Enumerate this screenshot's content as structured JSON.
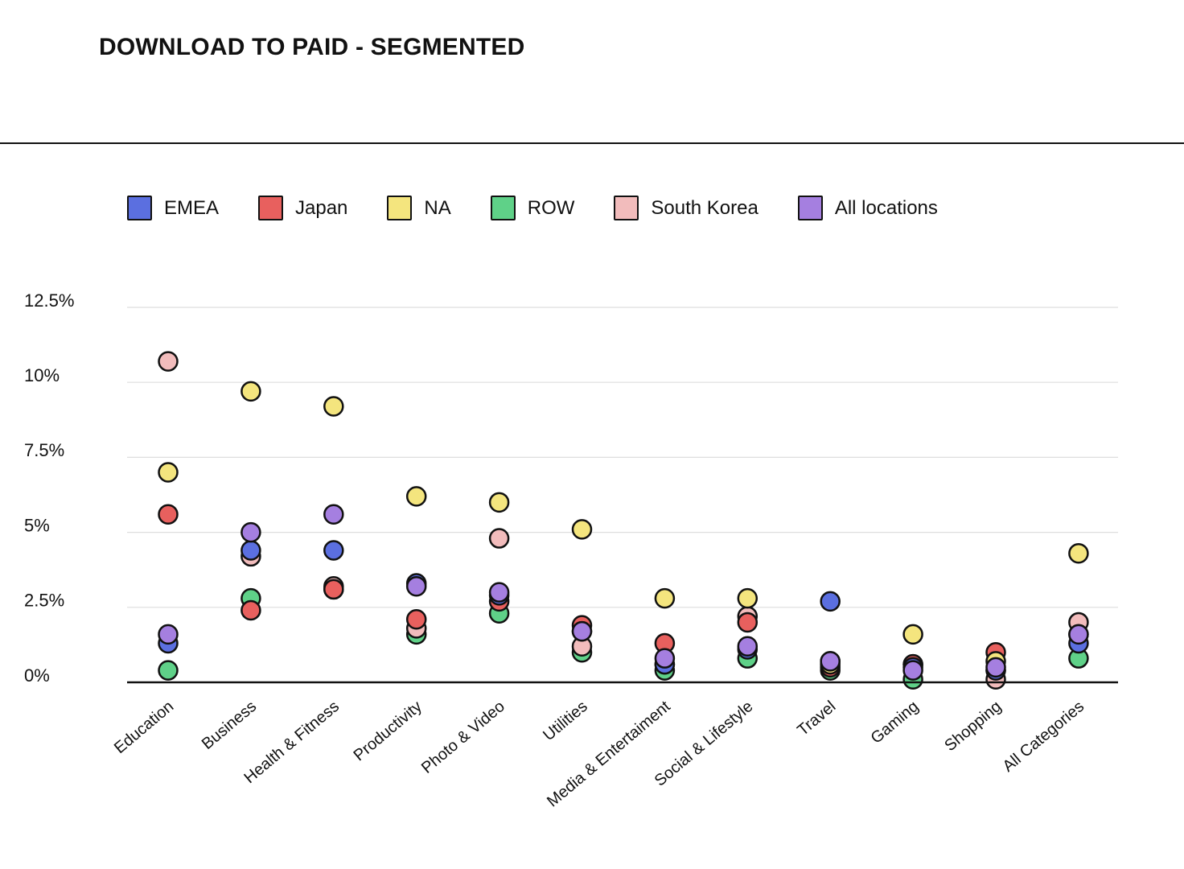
{
  "chart_data": {
    "type": "scatter",
    "title": "DOWNLOAD TO PAID - SEGMENTED",
    "xlabel": "",
    "ylabel": "",
    "ylim": [
      0,
      12.5
    ],
    "yticks": [
      0,
      2.5,
      5,
      7.5,
      10,
      12.5
    ],
    "ytick_labels": [
      "0%",
      "2.5%",
      "5%",
      "7.5%",
      "10%",
      "12.5%"
    ],
    "grid": true,
    "legend_position": "top-left",
    "categories": [
      "Education",
      "Business",
      "Health & Fitness",
      "Productivity",
      "Photo & Video",
      "Utilities",
      "Media & Entertaiment",
      "Social & Lifestyle",
      "Travel",
      "Gaming",
      "Shopping",
      "All Categories"
    ],
    "series": [
      {
        "name": "EMEA",
        "color": "#5b6fe0",
        "values": [
          1.3,
          4.4,
          4.4,
          3.3,
          2.9,
          1.7,
          0.6,
          1.1,
          2.7,
          0.5,
          0.4,
          1.3
        ]
      },
      {
        "name": "Japan",
        "color": "#e8605e",
        "values": [
          5.6,
          2.4,
          3.1,
          2.1,
          2.7,
          1.9,
          1.3,
          2.0,
          0.5,
          0.6,
          1.0,
          1.6
        ]
      },
      {
        "name": "NA",
        "color": "#f4e57e",
        "values": [
          7.0,
          9.7,
          9.2,
          6.2,
          6.0,
          5.1,
          2.8,
          2.8,
          0.6,
          1.6,
          0.7,
          4.3
        ]
      },
      {
        "name": "ROW",
        "color": "#5fd188",
        "values": [
          0.4,
          2.8,
          3.1,
          1.6,
          2.3,
          1.0,
          0.4,
          0.8,
          0.4,
          0.1,
          0.4,
          0.8
        ]
      },
      {
        "name": "South Korea",
        "color": "#f2bcbc",
        "values": [
          10.7,
          4.2,
          3.2,
          1.8,
          4.8,
          1.2,
          0.6,
          2.2,
          0.7,
          0.6,
          0.1,
          2.0
        ]
      },
      {
        "name": "All locations",
        "color": "#a57fe0",
        "values": [
          1.6,
          5.0,
          5.6,
          3.2,
          3.0,
          1.7,
          0.8,
          1.2,
          0.7,
          0.4,
          0.5,
          1.6
        ]
      }
    ]
  }
}
